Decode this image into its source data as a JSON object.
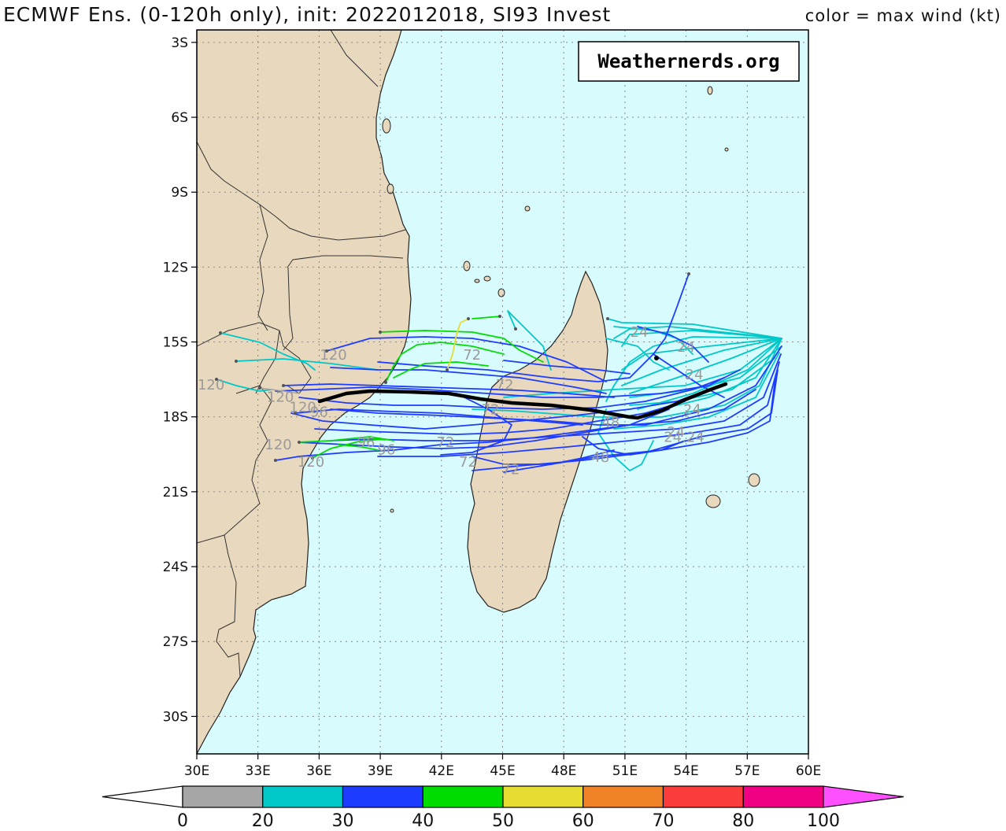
{
  "header": {
    "title": "ECMWF Ens. (0-120h only), init: 2022012018, SI93 Invest",
    "legend_note": "color = max wind (kt)"
  },
  "credit": "Weathernerds.org",
  "map": {
    "lon_range": [
      30,
      60
    ],
    "lat_range": [
      -31.5,
      -2.5
    ],
    "lat_ticks": [
      "3S",
      "6S",
      "9S",
      "12S",
      "15S",
      "18S",
      "21S",
      "24S",
      "27S",
      "30S"
    ],
    "lon_ticks": [
      "30E",
      "33E",
      "36E",
      "39E",
      "42E",
      "45E",
      "48E",
      "51E",
      "54E",
      "57E",
      "60E"
    ],
    "land_color": "#e8d8bd",
    "ocean_color": "#d8fbfd",
    "gridline": "dotted"
  },
  "colorbar": {
    "labels": [
      "0",
      "20",
      "30",
      "40",
      "50",
      "60",
      "70",
      "80",
      "100"
    ],
    "colors": [
      "#a6a6a6",
      "#00c8c8",
      "#1e3cff",
      "#00dc00",
      "#e6dc32",
      "#f08228",
      "#fa3c3c",
      "#f00082",
      "#ff50ff"
    ]
  },
  "track_labels": [
    {
      "text": "120",
      "lon": 30.7,
      "lat": -16.9
    },
    {
      "text": "120",
      "lon": 34.1,
      "lat": -17.4
    },
    {
      "text": "120",
      "lon": 35.2,
      "lat": -17.8
    },
    {
      "text": "120",
      "lon": 36.7,
      "lat": -15.7
    },
    {
      "text": "120",
      "lon": 34.0,
      "lat": -19.3
    },
    {
      "text": "120",
      "lon": 35.6,
      "lat": -20.0
    },
    {
      "text": "96",
      "lon": 36.0,
      "lat": -18.0
    },
    {
      "text": "96",
      "lon": 38.3,
      "lat": -19.2
    },
    {
      "text": "96",
      "lon": 39.3,
      "lat": -19.5
    },
    {
      "text": "72",
      "lon": 43.5,
      "lat": -15.7
    },
    {
      "text": "72",
      "lon": 45.1,
      "lat": -16.9
    },
    {
      "text": "72",
      "lon": 42.2,
      "lat": -19.2
    },
    {
      "text": "72",
      "lon": 43.3,
      "lat": -20.0
    },
    {
      "text": "72",
      "lon": 45.4,
      "lat": -20.3
    },
    {
      "text": "72",
      "lon": 44.4,
      "lat": -17.9
    },
    {
      "text": "48",
      "lon": 49.8,
      "lat": -19.8
    },
    {
      "text": "48",
      "lon": 50.3,
      "lat": -18.4
    },
    {
      "text": "24",
      "lon": 51.7,
      "lat": -14.8
    },
    {
      "text": "24",
      "lon": 54.0,
      "lat": -15.4
    },
    {
      "text": "24",
      "lon": 54.4,
      "lat": -16.5
    },
    {
      "text": "24",
      "lon": 54.3,
      "lat": -17.9
    },
    {
      "text": "24",
      "lon": 53.5,
      "lat": -18.8
    },
    {
      "text": "24.24",
      "lon": 53.9,
      "lat": -19.0
    }
  ]
}
